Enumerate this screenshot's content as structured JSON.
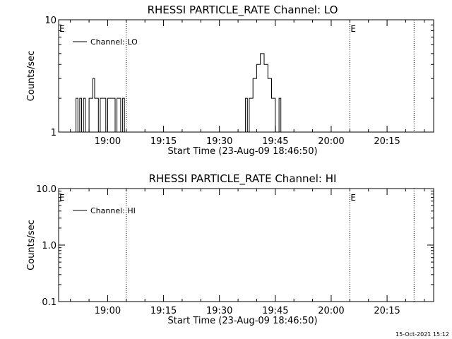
{
  "footer_timestamp": "15-Oct-2021 15:12",
  "chart_data": [
    {
      "type": "line",
      "title": "RHESSI PARTICLE_RATE Channel: LO",
      "xlabel": "Start Time (23-Aug-09 18:46:50)",
      "ylabel": "Counts/sec",
      "yscale": "log",
      "ylim": [
        1,
        10
      ],
      "ytick_labels": [
        "1",
        "10"
      ],
      "xlim": [
        "18:46:50",
        "20:27:30"
      ],
      "xtick_labels": [
        "19:00",
        "19:15",
        "19:30",
        "19:45",
        "20:00",
        "20:15"
      ],
      "legend": {
        "label": "Channel: LO",
        "position": "top-left"
      },
      "event_markers": [
        {
          "time": "19:05:00",
          "label": ""
        },
        {
          "time": "20:05:00",
          "label": "E"
        },
        {
          "time": "20:22:15",
          "label": ""
        }
      ],
      "start_marker_label": "E",
      "series": [
        {
          "name": "Channel: LO",
          "x": [
            "18:51:00",
            "18:51:30",
            "18:51:30",
            "18:52:00",
            "18:52:00",
            "18:52:30",
            "18:52:30",
            "18:53:00",
            "18:53:00",
            "18:53:30",
            "18:53:30",
            "18:54:00",
            "18:54:00",
            "18:54:30",
            "18:54:30",
            "18:55:00",
            "18:55:00",
            "18:55:30",
            "18:55:30",
            "18:56:00",
            "18:56:00",
            "18:56:30",
            "18:56:30",
            "18:57:00",
            "18:57:00",
            "18:57:30",
            "18:57:30",
            "18:58:00",
            "18:58:00",
            "18:58:30",
            "18:58:30",
            "18:59:00",
            "18:59:00",
            "18:59:30",
            "18:59:30",
            "19:00:00",
            "19:00:00",
            "19:00:30",
            "19:00:30",
            "19:01:00",
            "19:01:00",
            "19:01:30",
            "19:01:30",
            "19:02:00",
            "19:02:00",
            "19:02:30",
            "19:02:30",
            "19:03:00",
            "19:03:00",
            "19:03:30",
            "19:03:30",
            "19:04:00",
            "19:04:00",
            "19:04:30",
            "19:04:30",
            "19:05:00",
            "19:36:30",
            "19:37:00",
            "19:37:00",
            "19:37:30",
            "19:37:30",
            "19:38:00",
            "19:38:00",
            "19:38:30",
            "19:38:30",
            "19:39:00",
            "19:39:00",
            "19:39:30",
            "19:39:30",
            "19:40:00",
            "19:40:00",
            "19:40:30",
            "19:40:30",
            "19:41:00",
            "19:41:00",
            "19:41:30",
            "19:41:30",
            "19:42:00",
            "19:42:00",
            "19:42:30",
            "19:42:30",
            "19:43:00",
            "19:43:00",
            "19:43:30",
            "19:43:30",
            "19:44:00",
            "19:44:00",
            "19:44:30",
            "19:44:30",
            "19:45:00",
            "19:45:00",
            "19:45:30",
            "19:45:30",
            "19:46:00",
            "19:46:00",
            "19:46:30",
            "19:46:30",
            "19:47:00",
            "19:47:00",
            "19:47:30",
            "19:47:30",
            "19:48:00"
          ],
          "y": [
            1,
            1,
            2,
            2,
            1,
            1,
            2,
            2,
            1,
            1,
            2,
            2,
            1,
            1,
            1,
            1,
            2,
            2,
            2,
            2,
            3,
            3,
            2,
            2,
            2,
            2,
            1,
            1,
            2,
            2,
            2,
            2,
            2,
            2,
            1,
            1,
            2,
            2,
            2,
            2,
            2,
            2,
            2,
            2,
            1,
            1,
            2,
            2,
            2,
            2,
            1,
            1,
            2,
            2,
            1,
            1,
            1,
            1,
            2,
            2,
            1,
            1,
            2,
            2,
            2,
            2,
            3,
            3,
            3,
            3,
            4,
            4,
            4,
            4,
            5,
            5,
            5,
            5,
            4,
            4,
            4,
            4,
            3,
            3,
            3,
            3,
            2,
            2,
            2,
            2,
            1,
            1,
            1,
            1,
            2,
            2,
            1,
            1,
            1,
            1,
            1,
            1
          ]
        }
      ]
    },
    {
      "type": "line",
      "title": "RHESSI PARTICLE_RATE Channel: HI",
      "xlabel": "Start Time (23-Aug-09 18:46:50)",
      "ylabel": "Counts/sec",
      "yscale": "log",
      "ylim": [
        0.1,
        10
      ],
      "ytick_labels": [
        "0.1",
        "1.0",
        "10.0"
      ],
      "xlim": [
        "18:46:50",
        "20:27:30"
      ],
      "xtick_labels": [
        "19:00",
        "19:15",
        "19:30",
        "19:45",
        "20:00",
        "20:15"
      ],
      "legend": {
        "label": "Channel: HI",
        "position": "top-left"
      },
      "event_markers": [
        {
          "time": "19:05:00",
          "label": ""
        },
        {
          "time": "20:05:00",
          "label": "E"
        },
        {
          "time": "20:22:15",
          "label": ""
        }
      ],
      "start_marker_label": "E",
      "series": [
        {
          "name": "Channel: HI",
          "x": [],
          "y": []
        }
      ]
    }
  ]
}
